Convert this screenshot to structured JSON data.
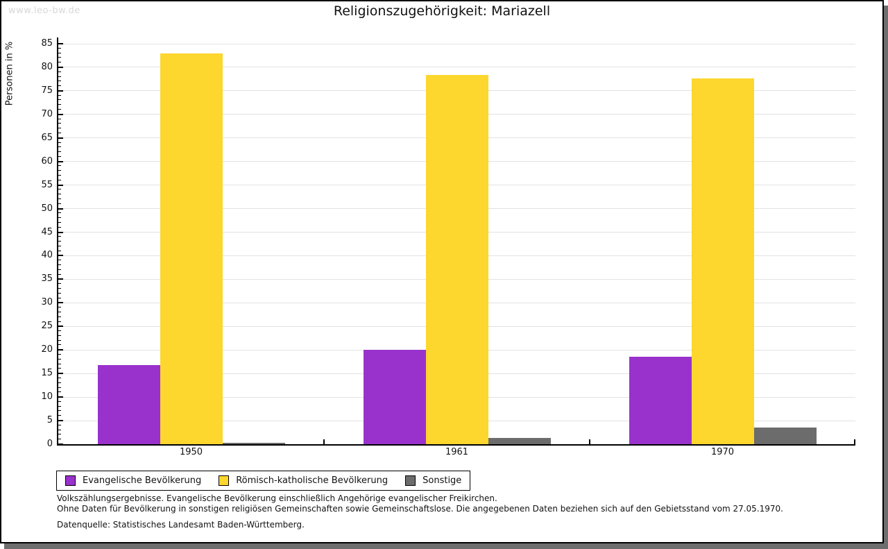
{
  "watermark": "www.leo-bw.de",
  "chart_data": {
    "type": "bar",
    "title": "Religionszugehörigkeit: Mariazell",
    "ylabel": "Personen in %",
    "xlabel": "",
    "categories": [
      "1950",
      "1961",
      "1970"
    ],
    "series": [
      {
        "id": "evangelische-bevoelkerung",
        "name": "Evangelische Bevölkerung",
        "color": "#9932cc",
        "values": [
          16.8,
          20.1,
          18.6
        ]
      },
      {
        "id": "roemisch-katholische-bevoelkerung",
        "name": "Römisch-katholische Bevölkerung",
        "color": "#fdd62e",
        "values": [
          82.9,
          78.4,
          77.7
        ]
      },
      {
        "id": "sonstige",
        "name": "Sonstige",
        "color": "#6c6c6c",
        "values": [
          0.3,
          1.3,
          3.5
        ]
      }
    ],
    "ylim": [
      0,
      85
    ],
    "ytick_step": 5,
    "minor_tick_step": 1,
    "grid": true,
    "legend_position": "bottom"
  },
  "footnotes": [
    "Volkszählungsergebnisse. Evangelische Bevölkerung einschließlich Angehörige evangelischer Freikirchen.",
    "Ohne Daten für Bevölkerung in sonstigen religiösen Gemeinschaften sowie Gemeinschaftslose. Die angegebenen Daten beziehen sich auf den Gebietsstand vom 27.05.1970.",
    "Datenquelle: Statistisches Landesamt Baden-Württemberg."
  ],
  "colors": {
    "evangelisch": "#9932cc",
    "katholisch": "#fdd62e",
    "sonstige": "#6c6c6c",
    "gridline": "#e2e2e2",
    "shadow": "#6e6e6e",
    "watermark": "#d8d8d8"
  }
}
